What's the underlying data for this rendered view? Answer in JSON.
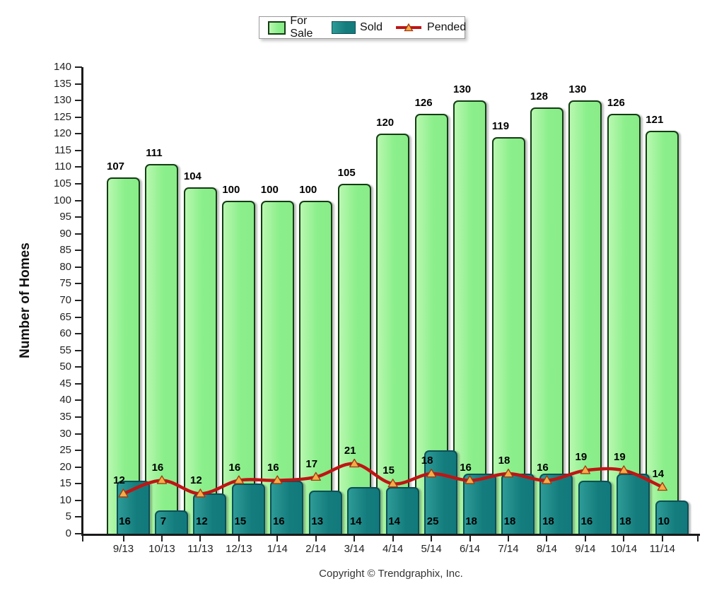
{
  "legend": {
    "position": "top-center"
  },
  "y_axis": {
    "title": "Number of Homes"
  },
  "footer": {
    "copyright": "Copyright © Trendgraphix, Inc."
  },
  "chart_data": {
    "type": "bar",
    "subtype": "grouped-overlap-bars-with-line",
    "title": "",
    "xlabel": "",
    "ylabel": "Number of Homes",
    "ylim": [
      0,
      140
    ],
    "ytick_step": 5,
    "grid": false,
    "legend_position": "top-center",
    "categories": [
      "9/13",
      "10/13",
      "11/13",
      "12/13",
      "1/14",
      "2/14",
      "3/14",
      "4/14",
      "5/14",
      "6/14",
      "7/14",
      "8/14",
      "9/14",
      "10/14",
      "11/14"
    ],
    "series": [
      {
        "name": "For Sale",
        "type": "bar",
        "color": "#8cee8a",
        "border_color": "#143c14",
        "values": [
          107,
          111,
          104,
          100,
          100,
          100,
          105,
          120,
          126,
          130,
          119,
          128,
          130,
          126,
          121
        ]
      },
      {
        "name": "Sold",
        "type": "bar",
        "color": "#15807f",
        "border_color": "#0d4f56",
        "values": [
          16,
          7,
          12,
          15,
          16,
          13,
          14,
          14,
          25,
          18,
          18,
          18,
          16,
          18,
          10
        ]
      },
      {
        "name": "Pended",
        "type": "line",
        "color": "#c01414",
        "marker": "triangle",
        "marker_color": "#f6ab48",
        "values": [
          12,
          16,
          12,
          16,
          16,
          17,
          21,
          15,
          18,
          16,
          18,
          16,
          19,
          19,
          14
        ]
      }
    ]
  }
}
